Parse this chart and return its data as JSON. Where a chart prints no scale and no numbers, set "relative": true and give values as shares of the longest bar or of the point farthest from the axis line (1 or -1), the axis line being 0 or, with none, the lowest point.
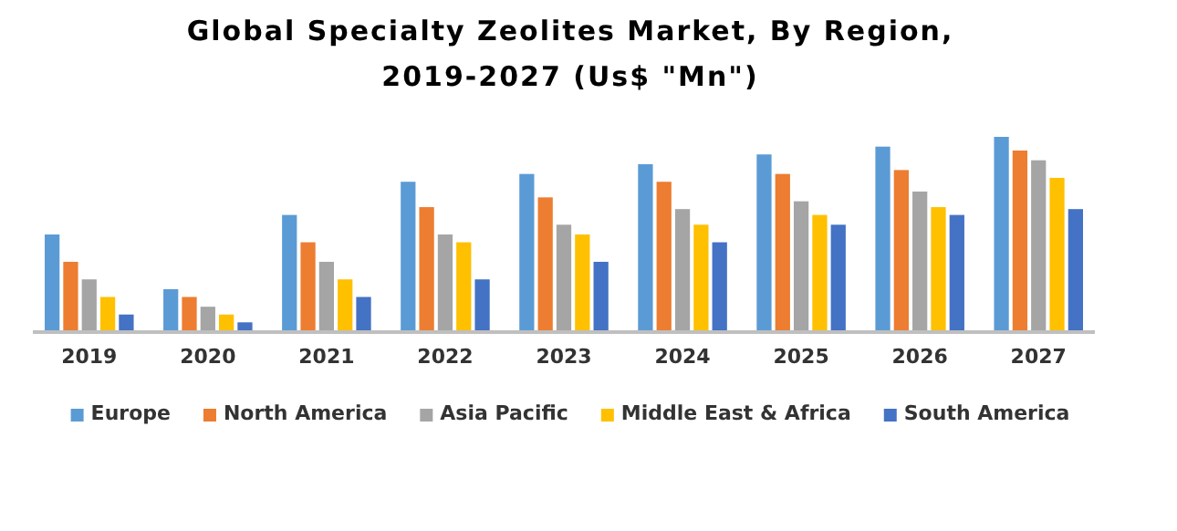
{
  "chart_data": {
    "type": "bar",
    "title": "Global Specialty Zeolites Market, By Region, 2019-2027 (Us$ \"Mn\")",
    "relative": true,
    "legend": "bottom",
    "categories": [
      "2019",
      "2020",
      "2021",
      "2022",
      "2023",
      "2024",
      "2025",
      "2026",
      "2027"
    ],
    "series": [
      {
        "name": "Europe",
        "color": "#5b9bd5",
        "values": [
          0.5,
          0.22,
          0.6,
          0.77,
          0.81,
          0.86,
          0.91,
          0.95,
          1
        ]
      },
      {
        "name": "North America",
        "color": "#ed7d31",
        "values": [
          0.36,
          0.18,
          0.46,
          0.64,
          0.69,
          0.77,
          0.81,
          0.83,
          0.93
        ]
      },
      {
        "name": "Asia Pacific",
        "color": "#a5a5a5",
        "values": [
          0.27,
          0.13,
          0.36,
          0.5,
          0.55,
          0.63,
          0.67,
          0.72,
          0.88
        ]
      },
      {
        "name": "Middle East & Africa",
        "color": "#ffc000",
        "values": [
          0.18,
          0.09,
          0.27,
          0.46,
          0.5,
          0.55,
          0.6,
          0.64,
          0.79
        ]
      },
      {
        "name": "South America",
        "color": "#4472c4",
        "values": [
          0.09,
          0.05,
          0.18,
          0.27,
          0.36,
          0.46,
          0.55,
          0.6,
          0.63
        ]
      }
    ]
  }
}
